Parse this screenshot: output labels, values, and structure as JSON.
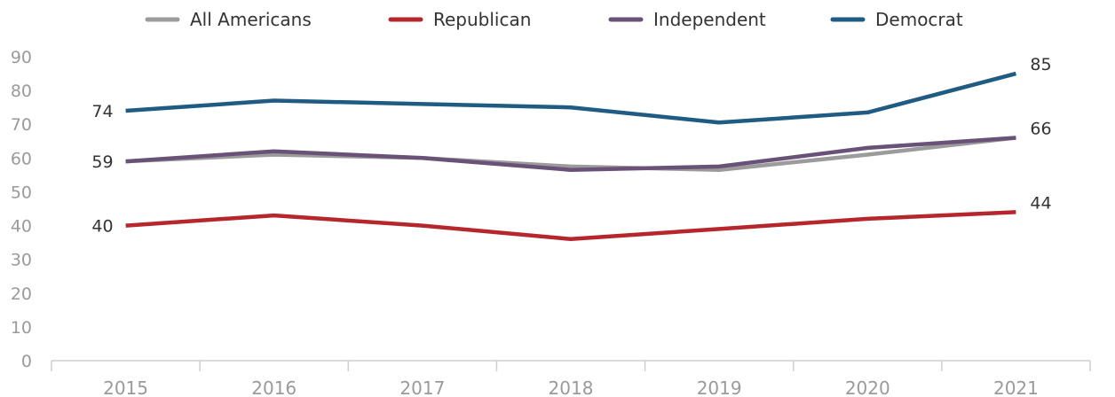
{
  "chart_data": {
    "type": "line",
    "x": [
      "2015",
      "2016",
      "2017",
      "2018",
      "2019",
      "2020",
      "2021"
    ],
    "ylim": [
      0,
      90
    ],
    "yticks": [
      "0",
      "10",
      "20",
      "30",
      "40",
      "50",
      "60",
      "70",
      "80",
      "90"
    ],
    "legend_position": "top",
    "grid": false,
    "series": [
      {
        "name": "All Americans",
        "color": "#9b9b9b",
        "values": [
          59,
          61,
          60,
          57.5,
          56.5,
          61,
          66
        ]
      },
      {
        "name": "Republican",
        "color": "#b5272d",
        "values": [
          40,
          43,
          40,
          36,
          39,
          42,
          44
        ]
      },
      {
        "name": "Independent",
        "color": "#6a5178",
        "values": [
          59,
          62,
          60,
          56.5,
          57.5,
          63,
          66
        ]
      },
      {
        "name": "Democrat",
        "color": "#1f5b82",
        "values": [
          74,
          77,
          76,
          75,
          70.5,
          73.5,
          85
        ]
      }
    ],
    "data_labels": [
      {
        "text": "74",
        "series": 3,
        "index": 0,
        "side": "left"
      },
      {
        "text": "59",
        "series": 0,
        "index": 0,
        "side": "left"
      },
      {
        "text": "40",
        "series": 1,
        "index": 0,
        "side": "left"
      },
      {
        "text": "85",
        "series": 3,
        "index": 6,
        "side": "right"
      },
      {
        "text": "66",
        "series": 0,
        "index": 6,
        "side": "right"
      },
      {
        "text": "44",
        "series": 1,
        "index": 6,
        "side": "right"
      }
    ]
  }
}
